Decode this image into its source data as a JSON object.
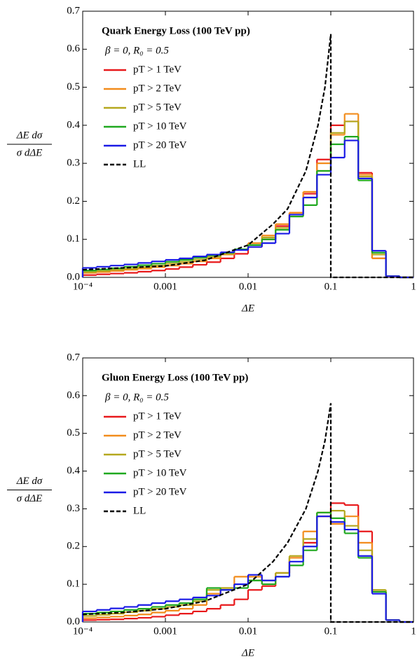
{
  "chart_data": [
    {
      "type": "histogram",
      "title": "Quark Energy Loss (100 TeV pp)",
      "subtitle": "β = 0, R₀ = 0.5",
      "ylabel_top": "ΔE dσ",
      "ylabel_bottom": "σ dΔE",
      "xlabel": "ΔE",
      "log_x": true,
      "xlim": [
        0.0001,
        1
      ],
      "ylim": [
        0,
        0.7
      ],
      "xticks": [
        {
          "value": 0.0001,
          "label": "10⁻⁴"
        },
        0.001,
        0.01,
        0.1,
        1
      ],
      "yticks": [
        {
          "value": 0,
          "label": "0.0"
        },
        0.1,
        0.2,
        0.3,
        0.4,
        0.5,
        0.6,
        0.7
      ],
      "bins": [
        0.0001,
        0.000147,
        0.000215,
        0.000316,
        0.000464,
        0.000681,
        0.001,
        0.00147,
        0.00215,
        0.00316,
        0.00464,
        0.00681,
        0.01,
        0.0147,
        0.0215,
        0.0316,
        0.0464,
        0.0681,
        0.1,
        0.147,
        0.215,
        0.316,
        0.464,
        0.681,
        1
      ],
      "series": [
        {
          "name": "pT > 1 TeV",
          "color": "#e8191b",
          "values": [
            0.006,
            0.008,
            0.01,
            0.012,
            0.015,
            0.018,
            0.022,
            0.027,
            0.033,
            0.04,
            0.05,
            0.062,
            0.08,
            0.1,
            0.135,
            0.17,
            0.22,
            0.31,
            0.4,
            0.41,
            0.275,
            0.05,
            0.003,
            0
          ]
        },
        {
          "name": "pT > 2 TeV",
          "color": "#f28c1c",
          "values": [
            0.012,
            0.014,
            0.017,
            0.02,
            0.023,
            0.027,
            0.031,
            0.036,
            0.042,
            0.05,
            0.06,
            0.072,
            0.09,
            0.11,
            0.14,
            0.17,
            0.225,
            0.3,
            0.375,
            0.43,
            0.27,
            0.05,
            0.002,
            0
          ]
        },
        {
          "name": "pT > 5 TeV",
          "color": "#b5a81e",
          "values": [
            0.014,
            0.017,
            0.02,
            0.023,
            0.027,
            0.031,
            0.036,
            0.041,
            0.047,
            0.054,
            0.062,
            0.072,
            0.085,
            0.105,
            0.13,
            0.165,
            0.21,
            0.28,
            0.38,
            0.41,
            0.265,
            0.06,
            0.003,
            0
          ]
        },
        {
          "name": "pT > 10 TeV",
          "color": "#1fa81f",
          "values": [
            0.018,
            0.021,
            0.024,
            0.028,
            0.032,
            0.036,
            0.041,
            0.046,
            0.052,
            0.058,
            0.065,
            0.074,
            0.085,
            0.1,
            0.125,
            0.16,
            0.19,
            0.28,
            0.35,
            0.37,
            0.255,
            0.065,
            0.003,
            0
          ]
        },
        {
          "name": "pT > 20 TeV",
          "color": "#1a1ae6",
          "values": [
            0.025,
            0.028,
            0.031,
            0.034,
            0.038,
            0.042,
            0.046,
            0.05,
            0.055,
            0.06,
            0.066,
            0.072,
            0.08,
            0.09,
            0.115,
            0.165,
            0.21,
            0.27,
            0.315,
            0.36,
            0.26,
            0.07,
            0.003,
            0
          ]
        }
      ],
      "ll": {
        "name": "LL",
        "color": "#000000",
        "x": [
          0.0001,
          0.0003,
          0.001,
          0.003,
          0.01,
          0.02,
          0.03,
          0.05,
          0.07,
          0.085,
          0.1,
          0.1,
          1
        ],
        "values": [
          0.02,
          0.025,
          0.03,
          0.045,
          0.085,
          0.14,
          0.18,
          0.28,
          0.4,
          0.5,
          0.64,
          0,
          0
        ]
      }
    },
    {
      "type": "histogram",
      "title": "Gluon Energy Loss (100 TeV pp)",
      "subtitle": "β = 0, R₀ = 0.5",
      "ylabel_top": "ΔE dσ",
      "ylabel_bottom": "σ dΔE",
      "xlabel": "ΔE",
      "log_x": true,
      "xlim": [
        0.0001,
        1
      ],
      "ylim": [
        0,
        0.7
      ],
      "xticks": [
        {
          "value": 0.0001,
          "label": "10⁻⁴"
        },
        0.001,
        0.01,
        0.1,
        1
      ],
      "yticks": [
        {
          "value": 0,
          "label": "0.0"
        },
        0.1,
        0.2,
        0.3,
        0.4,
        0.5,
        0.6,
        0.7
      ],
      "bins": [
        0.0001,
        0.000147,
        0.000215,
        0.000316,
        0.000464,
        0.000681,
        0.001,
        0.00147,
        0.00215,
        0.00316,
        0.00464,
        0.00681,
        0.01,
        0.0147,
        0.0215,
        0.0316,
        0.0464,
        0.0681,
        0.1,
        0.147,
        0.215,
        0.316,
        0.464,
        0.681,
        1
      ],
      "series": [
        {
          "name": "pT > 1 TeV",
          "color": "#e8191b",
          "values": [
            0.005,
            0.006,
            0.007,
            0.009,
            0.011,
            0.014,
            0.018,
            0.022,
            0.028,
            0.035,
            0.045,
            0.06,
            0.085,
            0.095,
            0.13,
            0.17,
            0.21,
            0.28,
            0.315,
            0.31,
            0.24,
            0.08,
            0.005,
            0
          ]
        },
        {
          "name": "pT > 2 TeV",
          "color": "#f28c1c",
          "values": [
            0.01,
            0.012,
            0.014,
            0.017,
            0.02,
            0.025,
            0.03,
            0.035,
            0.045,
            0.075,
            0.09,
            0.12,
            0.12,
            0.1,
            0.13,
            0.17,
            0.24,
            0.29,
            0.26,
            0.28,
            0.21,
            0.08,
            0.005,
            0
          ]
        },
        {
          "name": "pT > 5 TeV",
          "color": "#b5a81e",
          "values": [
            0.016,
            0.019,
            0.022,
            0.026,
            0.03,
            0.035,
            0.04,
            0.045,
            0.055,
            0.085,
            0.09,
            0.1,
            0.11,
            0.11,
            0.13,
            0.175,
            0.22,
            0.29,
            0.295,
            0.255,
            0.19,
            0.085,
            0.005,
            0
          ]
        },
        {
          "name": "pT > 10 TeV",
          "color": "#1fa81f",
          "values": [
            0.022,
            0.025,
            0.028,
            0.032,
            0.035,
            0.04,
            0.045,
            0.05,
            0.06,
            0.09,
            0.085,
            0.09,
            0.11,
            0.1,
            0.12,
            0.15,
            0.19,
            0.29,
            0.275,
            0.235,
            0.17,
            0.08,
            0.005,
            0
          ]
        },
        {
          "name": "pT > 20 TeV",
          "color": "#1a1ae6",
          "values": [
            0.028,
            0.032,
            0.036,
            0.04,
            0.045,
            0.05,
            0.055,
            0.06,
            0.065,
            0.07,
            0.085,
            0.1,
            0.125,
            0.11,
            0.12,
            0.16,
            0.2,
            0.28,
            0.265,
            0.245,
            0.175,
            0.075,
            0.005,
            0
          ]
        }
      ],
      "ll": {
        "name": "LL",
        "color": "#000000",
        "x": [
          0.0001,
          0.0003,
          0.001,
          0.003,
          0.01,
          0.02,
          0.03,
          0.05,
          0.07,
          0.085,
          0.1,
          0.1,
          1
        ],
        "values": [
          0.02,
          0.025,
          0.035,
          0.055,
          0.1,
          0.16,
          0.21,
          0.3,
          0.4,
          0.48,
          0.58,
          0,
          0
        ]
      }
    }
  ]
}
